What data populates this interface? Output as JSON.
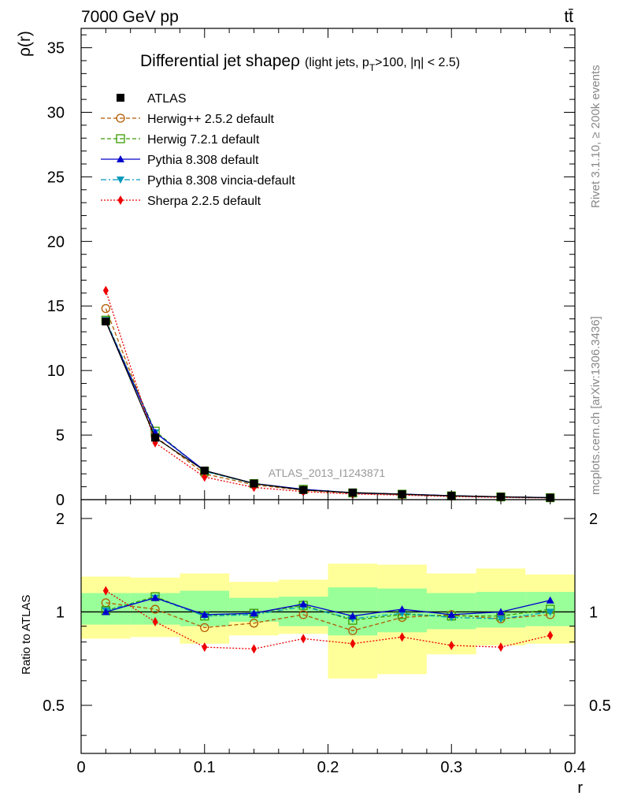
{
  "header": {
    "left": "7000 GeV pp",
    "right": "tt̄"
  },
  "side_labels": {
    "rivet": "Rivet 3.1.10, ≥ 200k events",
    "mcplots": "mcplots.cern.ch [arXiv:1306.3436]"
  },
  "chart_data": {
    "type": "line",
    "title_main": "Differential jet shapeρ",
    "title_sub": "(light jets, p",
    "title_sub_sub": "T",
    "title_sub_end": ">100, |η| < 2.5)",
    "watermark": "ATLAS_2013_I1243871",
    "xlabel": "r",
    "ylabel_top": "ρ(r)",
    "ylabel_bottom": "Ratio to ATLAS",
    "xlim": [
      0,
      0.4
    ],
    "ylim_top": [
      0,
      36.5
    ],
    "ylim_bottom": [
      0.35,
      2.3
    ],
    "x_ticks": [
      "0",
      "0.1",
      "0.2",
      "0.3",
      "0.4"
    ],
    "y_ticks_top": [
      "0",
      "5",
      "10",
      "15",
      "20",
      "25",
      "30",
      "35"
    ],
    "y_ticks_bottom": [
      "0.5",
      "1",
      "2"
    ],
    "x": [
      0.02,
      0.06,
      0.1,
      0.14,
      0.18,
      0.22,
      0.26,
      0.3,
      0.34,
      0.38
    ],
    "bins": [
      [
        0,
        0.04
      ],
      [
        0.04,
        0.08
      ],
      [
        0.08,
        0.12
      ],
      [
        0.12,
        0.16
      ],
      [
        0.16,
        0.2
      ],
      [
        0.2,
        0.24
      ],
      [
        0.24,
        0.28
      ],
      [
        0.28,
        0.32
      ],
      [
        0.32,
        0.36
      ],
      [
        0.36,
        0.4
      ]
    ],
    "band_yellow": [
      [
        0.82,
        1.3
      ],
      [
        0.83,
        1.29
      ],
      [
        0.79,
        1.33
      ],
      [
        0.84,
        1.25
      ],
      [
        0.85,
        1.27
      ],
      [
        0.61,
        1.43
      ],
      [
        0.63,
        1.42
      ],
      [
        0.73,
        1.33
      ],
      [
        0.78,
        1.38
      ],
      [
        0.79,
        1.32
      ]
    ],
    "band_green": [
      [
        0.91,
        1.15
      ],
      [
        0.91,
        1.15
      ],
      [
        0.9,
        1.17
      ],
      [
        0.93,
        1.11
      ],
      [
        0.9,
        1.12
      ],
      [
        0.84,
        1.2
      ],
      [
        0.86,
        1.19
      ],
      [
        0.88,
        1.15
      ],
      [
        0.89,
        1.16
      ],
      [
        0.9,
        1.16
      ]
    ],
    "series": [
      {
        "name": "ATLAS",
        "color": "#000000",
        "marker": "square-filled",
        "dash": "none",
        "values": [
          13.8,
          4.8,
          2.25,
          1.25,
          0.75,
          0.55,
          0.42,
          0.3,
          0.22,
          0.15
        ],
        "ratio": [
          1.0,
          1.0,
          1.0,
          1.0,
          1.0,
          1.0,
          1.0,
          1.0,
          1.0,
          1.0
        ]
      },
      {
        "name": "Herwig++ 2.5.2 default",
        "color": "#b35900",
        "marker": "circle-open",
        "dash": "5,3",
        "values": [
          14.8,
          4.9,
          2.0,
          1.15,
          0.73,
          0.48,
          0.4,
          0.29,
          0.21,
          0.15
        ],
        "ratio": [
          1.07,
          1.02,
          0.89,
          0.92,
          0.98,
          0.87,
          0.96,
          0.98,
          0.95,
          0.98
        ]
      },
      {
        "name": "Herwig 7.2.1 default",
        "color": "#3a9a00",
        "marker": "square-open",
        "dash": "5,3",
        "values": [
          13.9,
          5.3,
          2.2,
          1.24,
          0.8,
          0.52,
          0.42,
          0.29,
          0.21,
          0.15
        ],
        "ratio": [
          1.01,
          1.12,
          0.97,
          0.99,
          1.05,
          0.94,
          0.98,
          0.97,
          0.97,
          1.02
        ]
      },
      {
        "name": "Pythia 8.308 default",
        "color": "#0000cc",
        "marker": "triangle-up",
        "dash": "none",
        "values": [
          13.8,
          5.2,
          2.25,
          1.25,
          0.8,
          0.53,
          0.43,
          0.3,
          0.22,
          0.16
        ],
        "ratio": [
          1.0,
          1.11,
          0.98,
          0.99,
          1.06,
          0.97,
          1.02,
          0.98,
          1.0,
          1.09
        ]
      },
      {
        "name": "Pythia 8.308 vincia-default",
        "color": "#0099bb",
        "marker": "triangle-down",
        "dash": "7,3,2,3",
        "values": [
          13.9,
          5.2,
          2.2,
          1.23,
          0.79,
          0.52,
          0.42,
          0.29,
          0.21,
          0.15
        ],
        "ratio": [
          1.01,
          1.11,
          0.97,
          0.98,
          1.04,
          0.95,
          0.99,
          0.96,
          0.95,
          1.0
        ]
      },
      {
        "name": "Sherpa 2.2.5 default",
        "color": "#ee0000",
        "marker": "diamond",
        "dash": "2,2",
        "values": [
          16.2,
          4.4,
          1.75,
          0.95,
          0.62,
          0.44,
          0.35,
          0.24,
          0.17,
          0.13
        ],
        "ratio": [
          1.17,
          0.93,
          0.77,
          0.76,
          0.82,
          0.79,
          0.83,
          0.78,
          0.77,
          0.84
        ]
      }
    ]
  }
}
